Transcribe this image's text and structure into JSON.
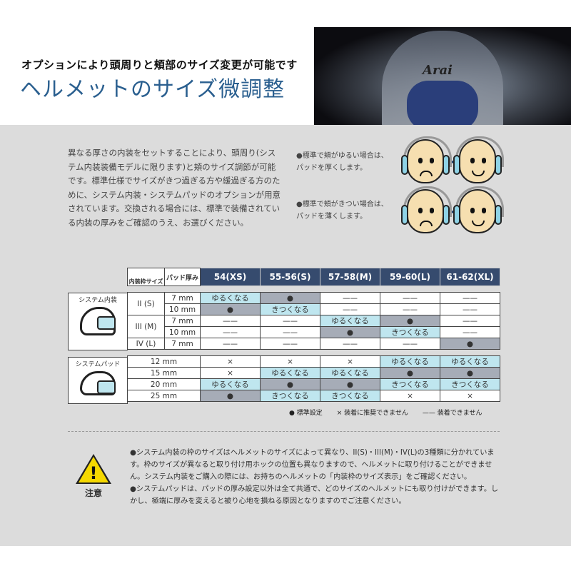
{
  "header": {
    "subtitle": "オプションにより頭周りと頬部のサイズ変更が可能です",
    "title": "ヘルメットのサイズ微調整",
    "helmet_logo": "Arai"
  },
  "intro": "異なる厚さの内装をセットすることにより、頭周り(システム内装装備モデルに限ります)と頬のサイズ調節が可能です。標準仕様でサイズがきつ過ぎる方や緩過ぎる方のために、システム内装・システムパッドのオプションが用意されています。交換される場合には、標準で装備されている内装の厚みをご確認のうえ、お選びください。",
  "notes": [
    {
      "line1": "●標準で頬がゆるい場合は、",
      "line2": "パッドを厚くします。"
    },
    {
      "line1": "●標準で頬がきつい場合は、",
      "line2": "パッドを薄くします。"
    }
  ],
  "table": {
    "corner_frame": "内装枠サイズ",
    "corner_pad": "パッド厚み",
    "columns": [
      "54(XS)",
      "55-56(S)",
      "57-58(M)",
      "59-60(L)",
      "61-62(XL)"
    ],
    "section1_label": "システム内装",
    "section2_label": "システムパッド",
    "section1": [
      {
        "frame": "II (S)",
        "pad": "7 mm",
        "cells": [
          [
            "L",
            "ゆるくなる"
          ],
          [
            "S",
            "●"
          ],
          [
            "W",
            "——"
          ],
          [
            "W",
            "——"
          ],
          [
            "W",
            "——"
          ]
        ]
      },
      {
        "frame": "",
        "pad": "10 mm",
        "cells": [
          [
            "S",
            "●"
          ],
          [
            "L",
            "きつくなる"
          ],
          [
            "W",
            "——"
          ],
          [
            "W",
            "——"
          ],
          [
            "W",
            "——"
          ]
        ]
      },
      {
        "frame": "III (M)",
        "pad": "7 mm",
        "cells": [
          [
            "W",
            "——"
          ],
          [
            "W",
            "——"
          ],
          [
            "L",
            "ゆるくなる"
          ],
          [
            "S",
            "●"
          ],
          [
            "W",
            "——"
          ]
        ]
      },
      {
        "frame": "",
        "pad": "10 mm",
        "cells": [
          [
            "W",
            "——"
          ],
          [
            "W",
            "——"
          ],
          [
            "S",
            "●"
          ],
          [
            "L",
            "きつくなる"
          ],
          [
            "W",
            "——"
          ]
        ]
      },
      {
        "frame": "IV (L)",
        "pad": "7 mm",
        "cells": [
          [
            "W",
            "——"
          ],
          [
            "W",
            "——"
          ],
          [
            "W",
            "——"
          ],
          [
            "W",
            "——"
          ],
          [
            "S",
            "●"
          ]
        ]
      }
    ],
    "section2": [
      {
        "pad": "12 mm",
        "cells": [
          [
            "W",
            "×"
          ],
          [
            "W",
            "×"
          ],
          [
            "W",
            "×"
          ],
          [
            "L",
            "ゆるくなる"
          ],
          [
            "L",
            "ゆるくなる"
          ]
        ]
      },
      {
        "pad": "15 mm",
        "cells": [
          [
            "W",
            "×"
          ],
          [
            "L",
            "ゆるくなる"
          ],
          [
            "L",
            "ゆるくなる"
          ],
          [
            "S",
            "●"
          ],
          [
            "S",
            "●"
          ]
        ]
      },
      {
        "pad": "20 mm",
        "cells": [
          [
            "L",
            "ゆるくなる"
          ],
          [
            "S",
            "●"
          ],
          [
            "S",
            "●"
          ],
          [
            "L",
            "きつくなる"
          ],
          [
            "L",
            "きつくなる"
          ]
        ]
      },
      {
        "pad": "25 mm",
        "cells": [
          [
            "S",
            "●"
          ],
          [
            "L",
            "きつくなる"
          ],
          [
            "L",
            "きつくなる"
          ],
          [
            "W",
            "×"
          ],
          [
            "W",
            "×"
          ]
        ]
      }
    ],
    "legend": [
      "● 標準設定",
      "× 装着に推奨できません",
      "—— 装着できません"
    ]
  },
  "caution": {
    "label": "注意",
    "lines": [
      "●システム内装の枠のサイズはヘルメットのサイズによって異なり、II(S)・III(M)・IV(L)の3種類に分かれています。枠のサイズが異なると取り付け用ホックの位置も異なりますので、ヘルメットに取り付けることができません。システム内装をご購入の際には、お持ちのヘルメットの「内装枠のサイズ表示」をご確認ください。",
      "●システムパッドは、パッドの厚み設定以外は全て共通で、どのサイズのヘルメットにも取り付けができます。しかし、極端に厚みを変えると被り心地を損ねる原因となりますのでご注意ください。"
    ]
  },
  "colors": {
    "header_blue": "#364b6e",
    "loose_tight": "#bfe6ef",
    "standard": "#a6acb7",
    "title": "#2a5f8f",
    "warning": "#f5d800"
  }
}
